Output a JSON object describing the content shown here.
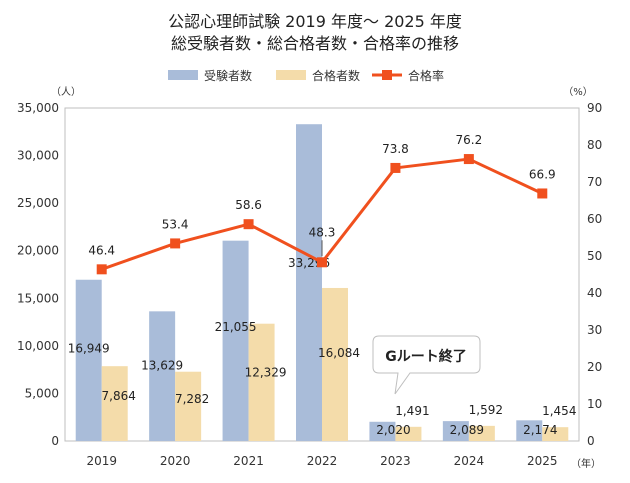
{
  "chart_data": {
    "type": "bar",
    "title_line1": "公認心理師試験 2019 年度～ 2025 年度",
    "title_line2": "総受験者数・総合格者数・合格率の推移",
    "categories": [
      "2019",
      "2020",
      "2021",
      "2022",
      "2023",
      "2024",
      "2025"
    ],
    "series": [
      {
        "name": "受験者数",
        "type": "bar",
        "axis": "left",
        "color": "#a9bcd9",
        "values": [
          16949,
          13629,
          21055,
          33296,
          2020,
          2089,
          2174
        ],
        "labels": [
          "16,949",
          "13,629",
          "21,055",
          "33,296",
          "2,020",
          "2,089",
          "2,174"
        ]
      },
      {
        "name": "合格者数",
        "type": "bar",
        "axis": "left",
        "color": "#f4dcaa",
        "values": [
          7864,
          7282,
          12329,
          16084,
          1491,
          1592,
          1454
        ],
        "labels": [
          "7,864",
          "7,282",
          "12,329",
          "16,084",
          "1,491",
          "1,592",
          "1,454"
        ]
      },
      {
        "name": "合格率",
        "type": "line",
        "axis": "right",
        "color": "#f0501e",
        "values": [
          46.4,
          53.4,
          58.6,
          48.3,
          73.8,
          76.2,
          66.9
        ],
        "labels": [
          "46.4",
          "53.4",
          "58.6",
          "48.3",
          "73.8",
          "76.2",
          "66.9"
        ]
      }
    ],
    "y_left": {
      "unit": "（人）",
      "ylim": [
        0,
        35000
      ],
      "ticks": [
        0,
        5000,
        10000,
        15000,
        20000,
        25000,
        30000,
        35000
      ],
      "tick_labels": [
        "0",
        "5,000",
        "10,000",
        "15,000",
        "20,000",
        "25,000",
        "30,000",
        "35,000"
      ]
    },
    "y_right": {
      "unit": "（%）",
      "ylim": [
        0,
        90
      ],
      "ticks": [
        0,
        10,
        20,
        30,
        40,
        50,
        60,
        70,
        80,
        90
      ],
      "tick_labels": [
        "0",
        "10",
        "20",
        "30",
        "40",
        "50",
        "60",
        "70",
        "80",
        "90"
      ]
    },
    "x_unit": "（年）",
    "grid": false,
    "legend_position": "top",
    "annotation": {
      "text": "Gルート終了",
      "category": "2023"
    }
  }
}
